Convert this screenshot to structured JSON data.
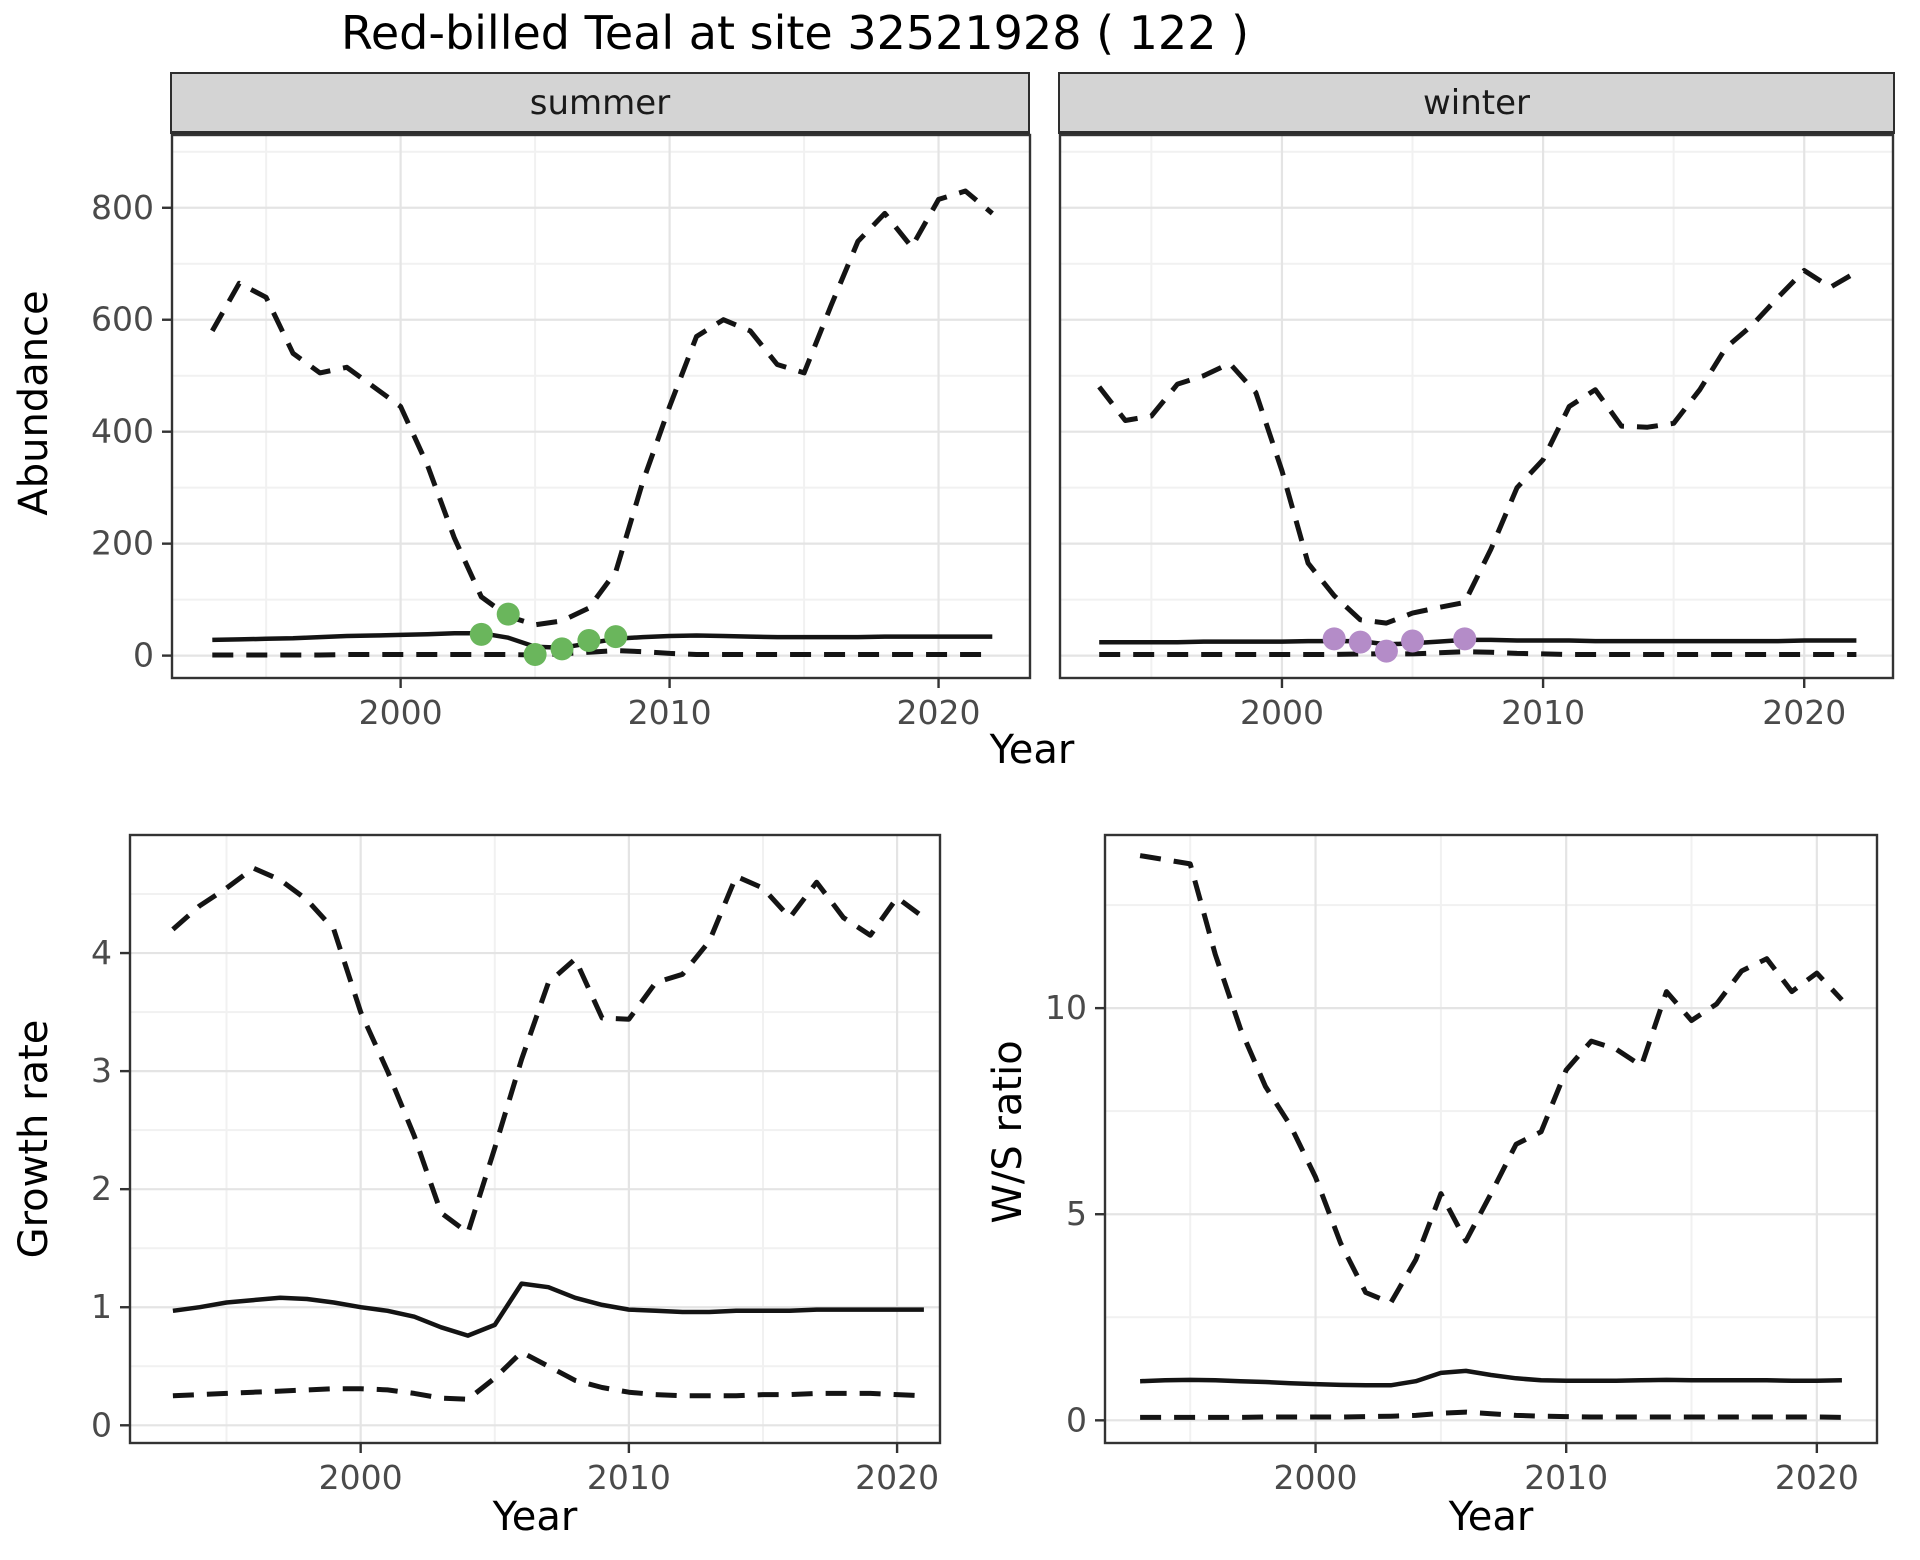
{
  "title": "Red-billed Teal at site 32521928 ( 122 )",
  "colors": {
    "line": "#141414",
    "summer_points": "#6ab65c",
    "winter_points": "#b48cc8",
    "strip_bg": "#d4d4d4",
    "grid_major": "#e4e4e4",
    "grid_minor": "#f1f1f1",
    "panel_border": "#333333",
    "tick_label": "#4a4a4a"
  },
  "chart_data": [
    {
      "id": "abundance-summer",
      "type": "line",
      "facet_label": "summer",
      "xlabel": "Year",
      "ylabel": "Abundance",
      "x": [
        1993,
        1994,
        1995,
        1996,
        1997,
        1998,
        1999,
        2000,
        2001,
        2002,
        2003,
        2004,
        2005,
        2006,
        2007,
        2008,
        2009,
        2010,
        2011,
        2012,
        2013,
        2014,
        2015,
        2016,
        2017,
        2018,
        2019,
        2020,
        2021,
        2022
      ],
      "series": [
        {
          "name": "upper-95ci",
          "style": "dashed",
          "values": [
            580,
            665,
            640,
            540,
            505,
            515,
            480,
            445,
            340,
            210,
            105,
            70,
            55,
            62,
            85,
            150,
            310,
            445,
            570,
            600,
            580,
            520,
            505,
            625,
            740,
            790,
            730,
            815,
            830,
            790
          ]
        },
        {
          "name": "estimate",
          "style": "solid",
          "values": [
            28,
            29,
            30,
            31,
            33,
            35,
            36,
            37,
            38,
            40,
            40,
            32,
            16,
            14,
            22,
            30,
            33,
            35,
            36,
            35,
            34,
            33,
            33,
            33,
            33,
            34,
            34,
            34,
            34,
            34
          ]
        },
        {
          "name": "lower-95ci",
          "style": "dashed",
          "values": [
            1,
            1,
            1,
            1,
            1,
            2,
            2,
            2,
            2,
            2,
            2,
            2,
            1,
            3,
            6,
            9,
            7,
            4,
            2,
            2,
            2,
            2,
            2,
            2,
            2,
            2,
            2,
            2,
            2,
            2
          ]
        }
      ],
      "observed": {
        "name": "observed-counts",
        "color": "#6ab65c",
        "points": [
          [
            2003,
            38
          ],
          [
            2004,
            74
          ],
          [
            2005,
            2
          ],
          [
            2006,
            12
          ],
          [
            2007,
            27
          ],
          [
            2008,
            34
          ]
        ]
      },
      "xticks": [
        2000,
        2010,
        2020
      ],
      "yticks": [
        0,
        200,
        400,
        600,
        800
      ],
      "xlim": [
        1991.5,
        2023.4
      ],
      "ylim": [
        -40,
        930
      ]
    },
    {
      "id": "abundance-winter",
      "type": "line",
      "facet_label": "winter",
      "xlabel": "Year",
      "ylabel": "Abundance",
      "x": [
        1993,
        1994,
        1995,
        1996,
        1997,
        1998,
        1999,
        2000,
        2001,
        2002,
        2003,
        2004,
        2005,
        2006,
        2007,
        2008,
        2009,
        2010,
        2011,
        2012,
        2013,
        2014,
        2015,
        2016,
        2017,
        2018,
        2019,
        2020,
        2021,
        2022
      ],
      "series": [
        {
          "name": "upper-95ci",
          "style": "dashed",
          "values": [
            480,
            420,
            428,
            485,
            500,
            522,
            470,
            330,
            165,
            107,
            64,
            58,
            76,
            86,
            95,
            190,
            300,
            350,
            445,
            475,
            410,
            408,
            415,
            475,
            550,
            590,
            640,
            688,
            658,
            685
          ]
        },
        {
          "name": "estimate",
          "style": "solid",
          "values": [
            24,
            24,
            24,
            24,
            25,
            25,
            25,
            25,
            26,
            26,
            26,
            20,
            22,
            25,
            28,
            28,
            27,
            27,
            27,
            26,
            26,
            26,
            26,
            26,
            26,
            26,
            26,
            27,
            27,
            27
          ]
        },
        {
          "name": "lower-95ci",
          "style": "dashed",
          "values": [
            2,
            2,
            2,
            2,
            2,
            2,
            2,
            2,
            2,
            2,
            3,
            3,
            3,
            5,
            7,
            6,
            4,
            3,
            2,
            2,
            2,
            2,
            2,
            2,
            2,
            2,
            2,
            2,
            2,
            2
          ]
        }
      ],
      "observed": {
        "name": "observed-counts",
        "color": "#b48cc8",
        "points": [
          [
            2002,
            30
          ],
          [
            2003,
            24
          ],
          [
            2004,
            8
          ],
          [
            2005,
            26
          ],
          [
            2007,
            30
          ]
        ]
      },
      "xticks": [
        2000,
        2010,
        2020
      ],
      "yticks": [
        0,
        200,
        400,
        600,
        800
      ],
      "xlim": [
        1991.5,
        2023.4
      ],
      "ylim": [
        -40,
        930
      ]
    },
    {
      "id": "growth-rate",
      "type": "line",
      "facet_label": "",
      "xlabel": "Year",
      "ylabel": "Growth rate",
      "x": [
        1993,
        1994,
        1995,
        1996,
        1997,
        1998,
        1999,
        2000,
        2001,
        2002,
        2003,
        2004,
        2005,
        2006,
        2007,
        2008,
        2009,
        2010,
        2011,
        2012,
        2013,
        2014,
        2015,
        2016,
        2017,
        2018,
        2019,
        2020,
        2021
      ],
      "series": [
        {
          "name": "upper-95ci",
          "style": "dashed",
          "values": [
            4.2,
            4.4,
            4.55,
            4.72,
            4.62,
            4.45,
            4.2,
            3.5,
            3.0,
            2.45,
            1.8,
            1.63,
            2.35,
            3.1,
            3.75,
            3.95,
            3.45,
            3.44,
            3.75,
            3.82,
            4.1,
            4.65,
            4.55,
            4.3,
            4.6,
            4.3,
            4.15,
            4.47,
            4.3
          ]
        },
        {
          "name": "estimate",
          "style": "solid",
          "values": [
            0.97,
            1.0,
            1.04,
            1.06,
            1.08,
            1.07,
            1.04,
            1.0,
            0.97,
            0.92,
            0.83,
            0.76,
            0.85,
            1.2,
            1.17,
            1.08,
            1.02,
            0.98,
            0.97,
            0.96,
            0.96,
            0.97,
            0.97,
            0.97,
            0.98,
            0.98,
            0.98,
            0.98,
            0.98
          ]
        },
        {
          "name": "lower-95ci",
          "style": "dashed",
          "values": [
            0.25,
            0.26,
            0.27,
            0.28,
            0.29,
            0.3,
            0.31,
            0.31,
            0.3,
            0.27,
            0.23,
            0.22,
            0.4,
            0.62,
            0.5,
            0.38,
            0.32,
            0.28,
            0.26,
            0.25,
            0.25,
            0.25,
            0.26,
            0.26,
            0.27,
            0.27,
            0.27,
            0.26,
            0.25
          ]
        }
      ],
      "observed": null,
      "xticks": [
        2000,
        2010,
        2020
      ],
      "yticks": [
        0,
        1,
        2,
        3,
        4
      ],
      "xlim": [
        1991.4,
        2021.6
      ],
      "ylim": [
        -0.15,
        5.0
      ]
    },
    {
      "id": "winter-summer-ratio",
      "type": "line",
      "facet_label": "",
      "xlabel": "Year",
      "ylabel": "W/S ratio",
      "x": [
        1993,
        1994,
        1995,
        1996,
        1997,
        1998,
        1999,
        2000,
        2001,
        2002,
        2003,
        2004,
        2005,
        2006,
        2007,
        2008,
        2009,
        2010,
        2011,
        2012,
        2013,
        2014,
        2015,
        2016,
        2017,
        2018,
        2019,
        2020,
        2021
      ],
      "series": [
        {
          "name": "upper-95ci",
          "style": "dashed",
          "values": [
            13.7,
            13.6,
            13.5,
            11.3,
            9.5,
            8.1,
            7.15,
            5.9,
            4.3,
            3.1,
            2.85,
            3.9,
            5.5,
            4.35,
            5.5,
            6.7,
            7.0,
            8.5,
            9.2,
            9.0,
            8.6,
            10.4,
            9.7,
            10.1,
            10.9,
            11.2,
            10.4,
            10.85,
            10.2
          ]
        },
        {
          "name": "estimate",
          "style": "solid",
          "values": [
            0.95,
            0.97,
            0.98,
            0.97,
            0.95,
            0.93,
            0.9,
            0.88,
            0.86,
            0.85,
            0.85,
            0.95,
            1.15,
            1.2,
            1.1,
            1.02,
            0.97,
            0.96,
            0.96,
            0.96,
            0.97,
            0.98,
            0.97,
            0.97,
            0.97,
            0.97,
            0.96,
            0.96,
            0.97
          ]
        },
        {
          "name": "lower-95ci",
          "style": "dashed",
          "values": [
            0.07,
            0.07,
            0.07,
            0.07,
            0.07,
            0.08,
            0.08,
            0.08,
            0.08,
            0.09,
            0.1,
            0.12,
            0.17,
            0.2,
            0.16,
            0.12,
            0.1,
            0.09,
            0.08,
            0.08,
            0.08,
            0.08,
            0.08,
            0.08,
            0.08,
            0.08,
            0.08,
            0.08,
            0.07
          ]
        }
      ],
      "observed": null,
      "xticks": [
        2000,
        2010,
        2020
      ],
      "yticks": [
        0,
        5,
        10
      ],
      "xlim": [
        1991.6,
        2022.4
      ],
      "ylim": [
        -0.55,
        14.2
      ]
    }
  ]
}
